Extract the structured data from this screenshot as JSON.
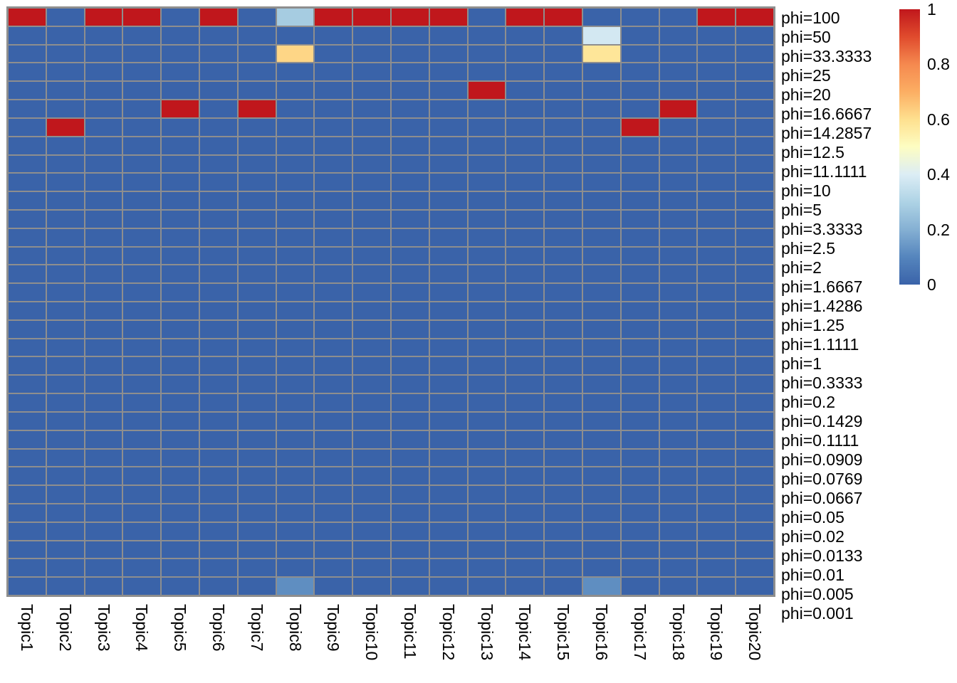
{
  "chart_data": {
    "type": "heatmap",
    "title": "",
    "xlabel": "",
    "ylabel": "",
    "x_categories": [
      "Topic1",
      "Topic2",
      "Topic3",
      "Topic4",
      "Topic5",
      "Topic6",
      "Topic7",
      "Topic8",
      "Topic9",
      "Topic10",
      "Topic11",
      "Topic12",
      "Topic13",
      "Topic14",
      "Topic15",
      "Topic16",
      "Topic17",
      "Topic18",
      "Topic19",
      "Topic20"
    ],
    "y_categories": [
      "phi=100",
      "phi=50",
      "phi=33.3333",
      "phi=25",
      "phi=20",
      "phi=16.6667",
      "phi=14.2857",
      "phi=12.5",
      "phi=11.1111",
      "phi=10",
      "phi=5",
      "phi=3.3333",
      "phi=2.5",
      "phi=2",
      "phi=1.6667",
      "phi=1.4286",
      "phi=1.25",
      "phi=1.1111",
      "phi=1",
      "phi=0.3333",
      "phi=0.2",
      "phi=0.1429",
      "phi=0.1111",
      "phi=0.0909",
      "phi=0.0769",
      "phi=0.0667",
      "phi=0.05",
      "phi=0.02",
      "phi=0.0133",
      "phi=0.01",
      "phi=0.005",
      "phi=0.001"
    ],
    "value_range": [
      0,
      1
    ],
    "grid": true,
    "matrix": [
      [
        1,
        0,
        1,
        1,
        0,
        1,
        0,
        0.28,
        1,
        1,
        1,
        1,
        0,
        1,
        1,
        0,
        0,
        0,
        1,
        1
      ],
      [
        0,
        0,
        0,
        0,
        0,
        0,
        0,
        0,
        0,
        0,
        0,
        0,
        0,
        0,
        0,
        0.38,
        0,
        0,
        0,
        0
      ],
      [
        0,
        0,
        0,
        0,
        0,
        0,
        0,
        0.62,
        0,
        0,
        0,
        0,
        0,
        0,
        0,
        0.58,
        0,
        0,
        0,
        0
      ],
      [
        0,
        0,
        0,
        0,
        0,
        0,
        0,
        0,
        0,
        0,
        0,
        0,
        0,
        0,
        0,
        0,
        0,
        0,
        0,
        0
      ],
      [
        0,
        0,
        0,
        0,
        0,
        0,
        0,
        0,
        0,
        0,
        0,
        0,
        1,
        0,
        0,
        0,
        0,
        0,
        0,
        0
      ],
      [
        0,
        0,
        0,
        0,
        1,
        0,
        1,
        0,
        0,
        0,
        0,
        0,
        0,
        0,
        0,
        0,
        0,
        1,
        0,
        0
      ],
      [
        0,
        1,
        0,
        0,
        0,
        0,
        0,
        0,
        0,
        0,
        0,
        0,
        0,
        0,
        0,
        0,
        1,
        0,
        0,
        0
      ],
      [
        0,
        0,
        0,
        0,
        0,
        0,
        0,
        0,
        0,
        0,
        0,
        0,
        0,
        0,
        0,
        0,
        0,
        0,
        0,
        0
      ],
      [
        0,
        0,
        0,
        0,
        0,
        0,
        0,
        0,
        0,
        0,
        0,
        0,
        0,
        0,
        0,
        0,
        0,
        0,
        0,
        0
      ],
      [
        0,
        0,
        0,
        0,
        0,
        0,
        0,
        0,
        0,
        0,
        0,
        0,
        0,
        0,
        0,
        0,
        0,
        0,
        0,
        0
      ],
      [
        0,
        0,
        0,
        0,
        0,
        0,
        0,
        0,
        0,
        0,
        0,
        0,
        0,
        0,
        0,
        0,
        0,
        0,
        0,
        0
      ],
      [
        0,
        0,
        0,
        0,
        0,
        0,
        0,
        0,
        0,
        0,
        0,
        0,
        0,
        0,
        0,
        0,
        0,
        0,
        0,
        0
      ],
      [
        0,
        0,
        0,
        0,
        0,
        0,
        0,
        0,
        0,
        0,
        0,
        0,
        0,
        0,
        0,
        0,
        0,
        0,
        0,
        0
      ],
      [
        0,
        0,
        0,
        0,
        0,
        0,
        0,
        0,
        0,
        0,
        0,
        0,
        0,
        0,
        0,
        0,
        0,
        0,
        0,
        0
      ],
      [
        0,
        0,
        0,
        0,
        0,
        0,
        0,
        0,
        0,
        0,
        0,
        0,
        0,
        0,
        0,
        0,
        0,
        0,
        0,
        0
      ],
      [
        0,
        0,
        0,
        0,
        0,
        0,
        0,
        0,
        0,
        0,
        0,
        0,
        0,
        0,
        0,
        0,
        0,
        0,
        0,
        0
      ],
      [
        0,
        0,
        0,
        0,
        0,
        0,
        0,
        0,
        0,
        0,
        0,
        0,
        0,
        0,
        0,
        0,
        0,
        0,
        0,
        0
      ],
      [
        0,
        0,
        0,
        0,
        0,
        0,
        0,
        0,
        0,
        0,
        0,
        0,
        0,
        0,
        0,
        0,
        0,
        0,
        0,
        0
      ],
      [
        0,
        0,
        0,
        0,
        0,
        0,
        0,
        0,
        0,
        0,
        0,
        0,
        0,
        0,
        0,
        0,
        0,
        0,
        0,
        0
      ],
      [
        0,
        0,
        0,
        0,
        0,
        0,
        0,
        0,
        0,
        0,
        0,
        0,
        0,
        0,
        0,
        0,
        0,
        0,
        0,
        0
      ],
      [
        0,
        0,
        0,
        0,
        0,
        0,
        0,
        0,
        0,
        0,
        0,
        0,
        0,
        0,
        0,
        0,
        0,
        0,
        0,
        0
      ],
      [
        0,
        0,
        0,
        0,
        0,
        0,
        0,
        0,
        0,
        0,
        0,
        0,
        0,
        0,
        0,
        0,
        0,
        0,
        0,
        0
      ],
      [
        0,
        0,
        0,
        0,
        0,
        0,
        0,
        0,
        0,
        0,
        0,
        0,
        0,
        0,
        0,
        0,
        0,
        0,
        0,
        0
      ],
      [
        0,
        0,
        0,
        0,
        0,
        0,
        0,
        0,
        0,
        0,
        0,
        0,
        0,
        0,
        0,
        0,
        0,
        0,
        0,
        0
      ],
      [
        0,
        0,
        0,
        0,
        0,
        0,
        0,
        0,
        0,
        0,
        0,
        0,
        0,
        0,
        0,
        0,
        0,
        0,
        0,
        0
      ],
      [
        0,
        0,
        0,
        0,
        0,
        0,
        0,
        0,
        0,
        0,
        0,
        0,
        0,
        0,
        0,
        0,
        0,
        0,
        0,
        0
      ],
      [
        0,
        0,
        0,
        0,
        0,
        0,
        0,
        0,
        0,
        0,
        0,
        0,
        0,
        0,
        0,
        0,
        0,
        0,
        0,
        0
      ],
      [
        0,
        0,
        0,
        0,
        0,
        0,
        0,
        0,
        0,
        0,
        0,
        0,
        0,
        0,
        0,
        0,
        0,
        0,
        0,
        0
      ],
      [
        0,
        0,
        0,
        0,
        0,
        0,
        0,
        0,
        0,
        0,
        0,
        0,
        0,
        0,
        0,
        0,
        0,
        0,
        0,
        0
      ],
      [
        0,
        0,
        0,
        0,
        0,
        0,
        0,
        0,
        0,
        0,
        0,
        0,
        0,
        0,
        0,
        0,
        0,
        0,
        0,
        0
      ],
      [
        0,
        0,
        0,
        0,
        0,
        0,
        0,
        0,
        0,
        0,
        0,
        0,
        0,
        0,
        0,
        0,
        0,
        0,
        0,
        0
      ],
      [
        0,
        0,
        0,
        0,
        0,
        0,
        0,
        0.12,
        0,
        0,
        0,
        0,
        0,
        0,
        0,
        0.12,
        0,
        0,
        0,
        0
      ]
    ],
    "colormap": {
      "name": "RdYlBu-reversed",
      "stops": [
        {
          "v": 0.0,
          "color": "#3a63a9"
        },
        {
          "v": 0.1,
          "color": "#5585bd"
        },
        {
          "v": 0.2,
          "color": "#85b0d3"
        },
        {
          "v": 0.3,
          "color": "#aed3e5"
        },
        {
          "v": 0.4,
          "color": "#dcedf5"
        },
        {
          "v": 0.5,
          "color": "#fdfdc2"
        },
        {
          "v": 0.6,
          "color": "#fee08f"
        },
        {
          "v": 0.7,
          "color": "#fcae63"
        },
        {
          "v": 0.8,
          "color": "#f5894f"
        },
        {
          "v": 0.9,
          "color": "#e04b2d"
        },
        {
          "v": 1.0,
          "color": "#c0171c"
        }
      ]
    },
    "colorbar": {
      "position": "right",
      "tick_labels": [
        "1",
        "0.8",
        "0.6",
        "0.4",
        "0.2",
        "0"
      ],
      "tick_values": [
        1,
        0.8,
        0.6,
        0.4,
        0.2,
        0
      ]
    },
    "colors": {
      "background": "#ffffff",
      "grid_line": "#8e8e8e",
      "label_text": "#000000"
    }
  }
}
